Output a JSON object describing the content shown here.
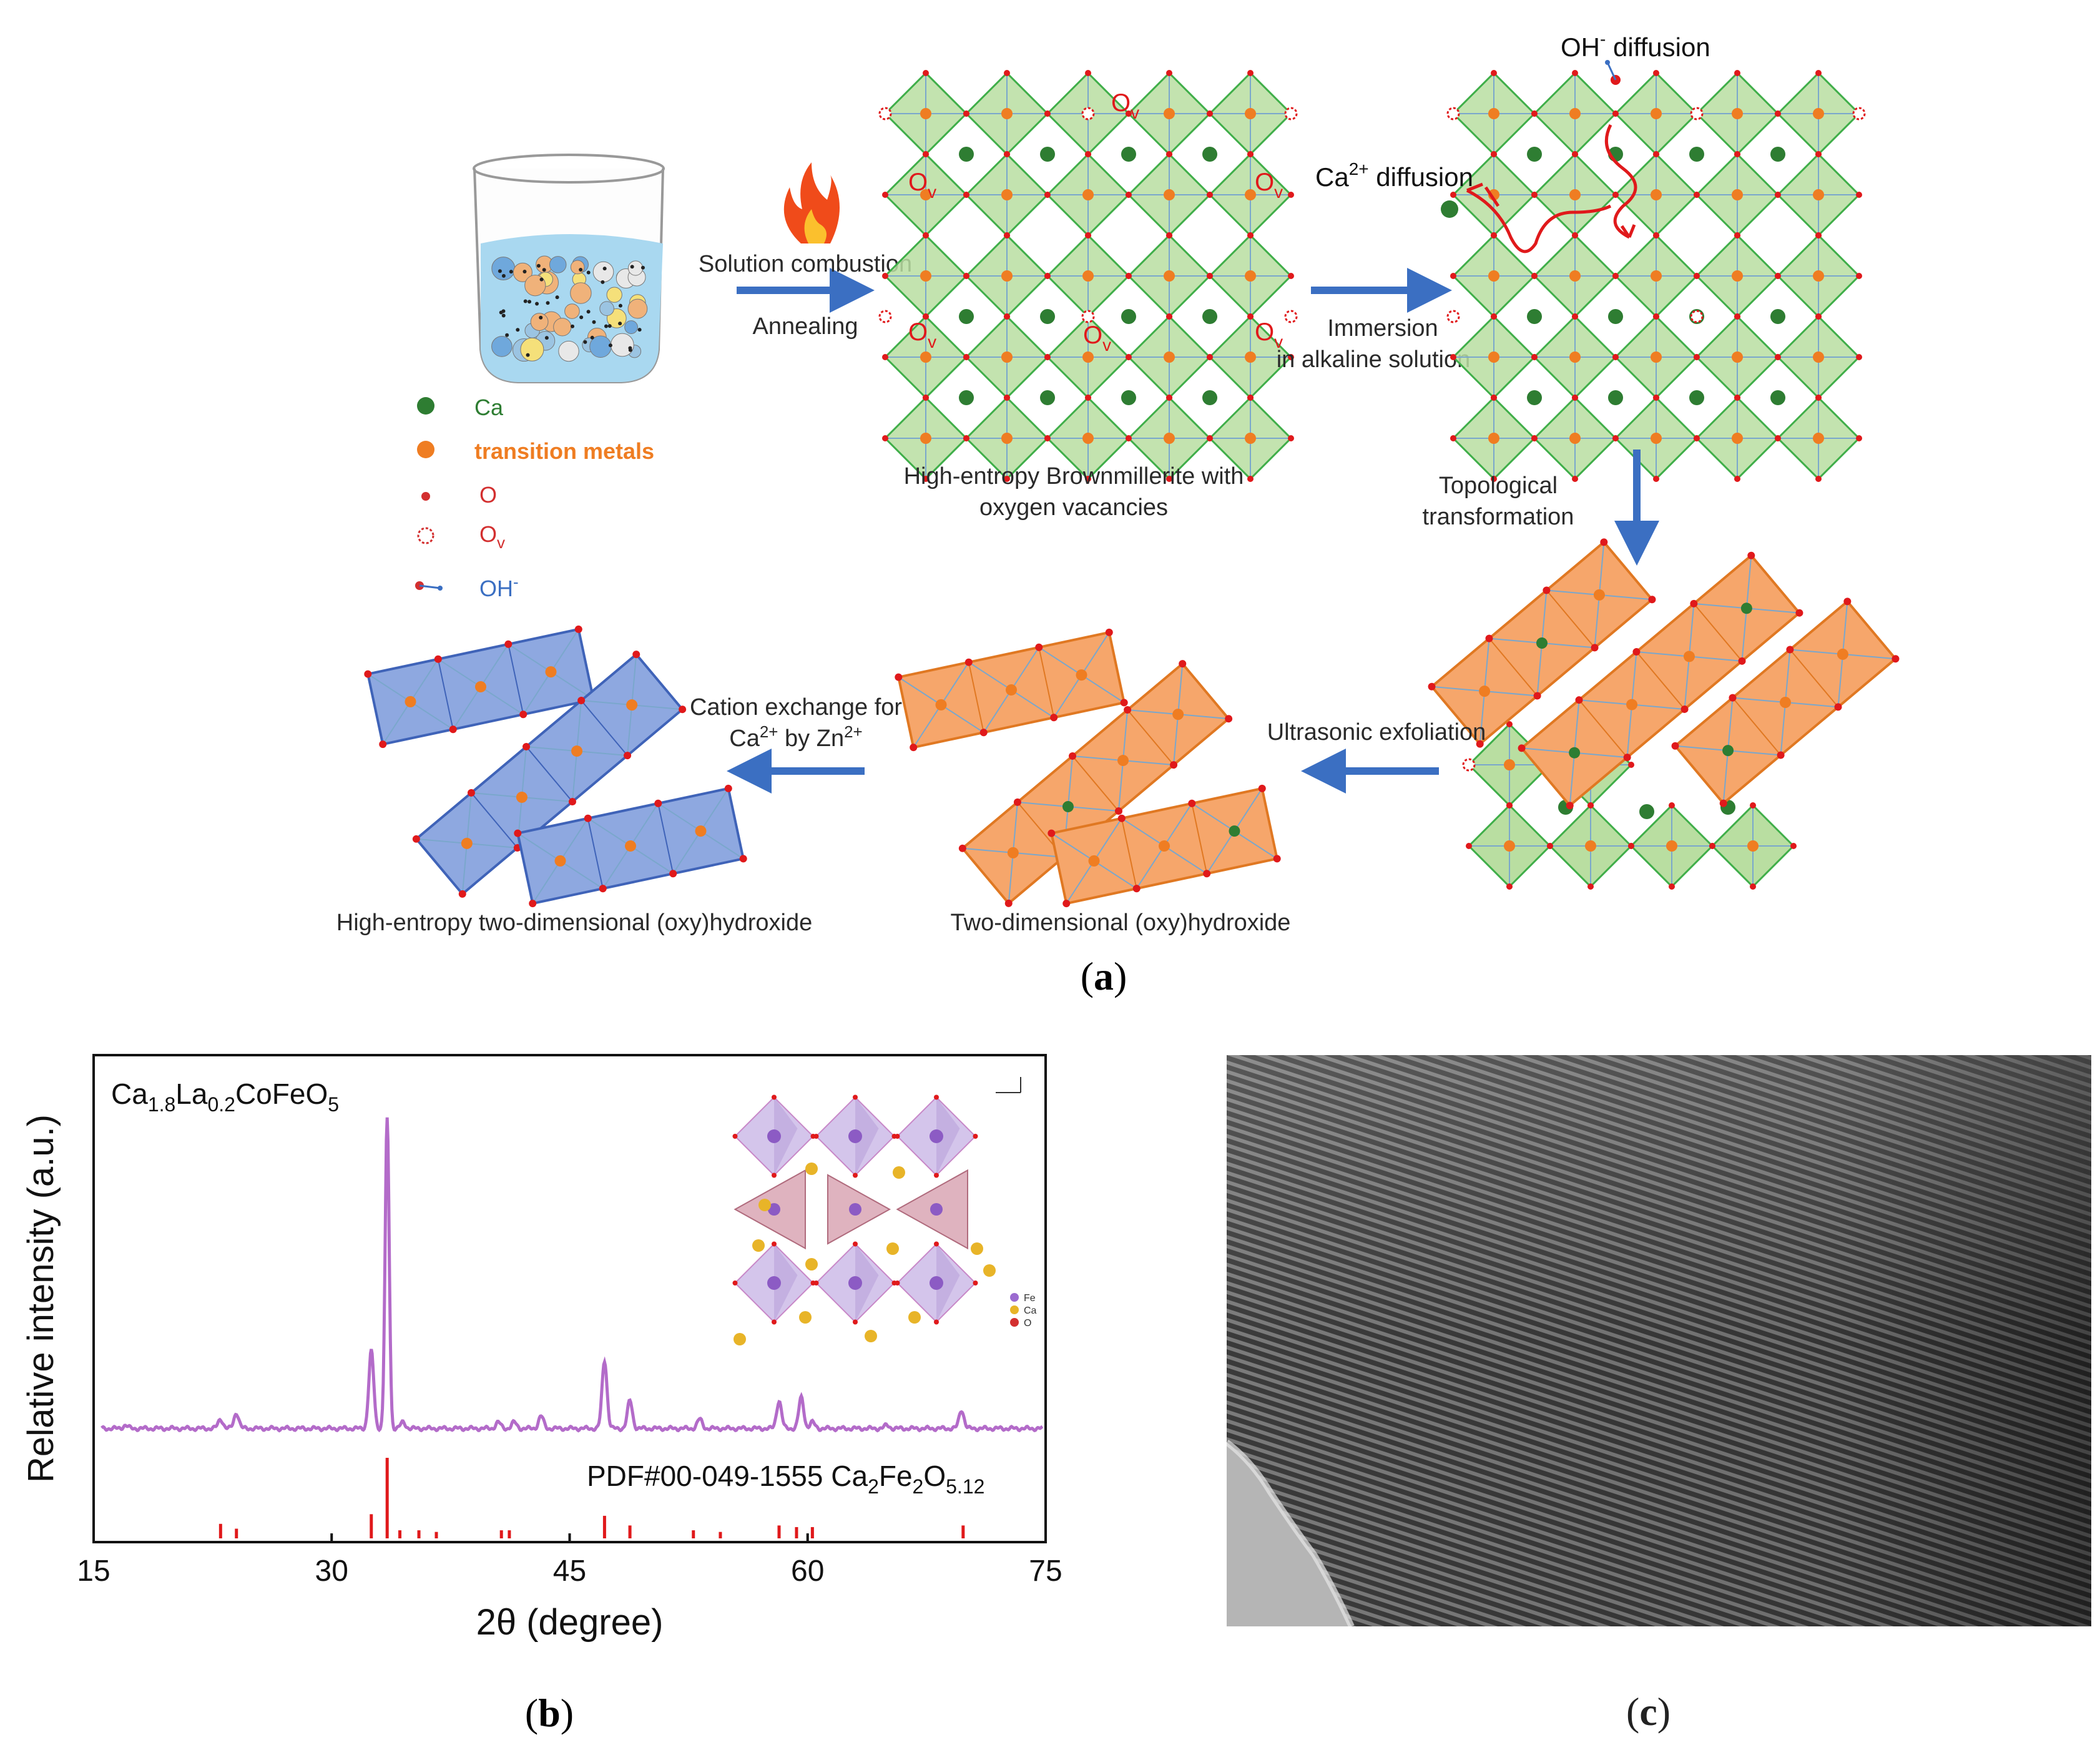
{
  "panel_a": {
    "label": "a",
    "legend": [
      {
        "text": "Ca",
        "color": "#2e7d32"
      },
      {
        "text": "transition metals",
        "color": "#ef7d22"
      },
      {
        "text": "O",
        "color": "#d32f2f"
      },
      {
        "text": "O",
        "sub": "v",
        "color": "#d32f2f"
      },
      {
        "text": "OH",
        "sup": "-",
        "color": "#3b6fc2"
      }
    ],
    "step1_top": "Solution combustion",
    "step1_bottom": "Annealing",
    "brownmillerite_caption_1": "High-entropy Brownmillerite with",
    "brownmillerite_caption_2": "oxygen vacancies",
    "ov_text": "O",
    "ov_sub": "v",
    "ca_diffusion": "Ca",
    "ca_diffusion_sup": "2+",
    "ca_diffusion_tail": " diffusion",
    "oh_diffusion": "OH",
    "oh_diffusion_sup": "-",
    "oh_diffusion_tail": " diffusion",
    "immersion_1": "Immersion",
    "immersion_2": "in alkaline solution",
    "topological_1": "Topological",
    "topological_2": "transformation",
    "ultrasonic": "Ultrasonic exfoliation",
    "cation_1": "Cation exchange for",
    "cation_2a": "Ca",
    "cation_2b": "2+",
    "cation_2c": " by Zn",
    "cation_2d": "2+",
    "twod_caption": "Two-dimensional (oxy)hydroxide",
    "he_twod_caption": "High-entropy two-dimensional (oxy)hydroxide"
  },
  "panel_b": {
    "label": "b",
    "compound": {
      "a": "Ca",
      "b": "1.8",
      "c": "La",
      "d": "0.2",
      "e": "CoFeO",
      "f": "5"
    },
    "reference": {
      "a": "PDF#00-049-1555 Ca",
      "b": "2",
      "c": "Fe",
      "d": "2",
      "e": "O",
      "f": "5.12"
    },
    "inset_legend": [
      "Fe",
      "Ca",
      "O"
    ],
    "inset_colors": [
      "#9b6bd0",
      "#e8b428",
      "#d32f2f"
    ]
  },
  "panel_c": {
    "label": "c"
  },
  "chart_data": {
    "type": "line",
    "xlabel": "2θ (degree)",
    "ylabel": "Relative intensity (a.u.)",
    "xlim": [
      15,
      75
    ],
    "xticks": [
      15,
      30,
      45,
      60,
      75
    ],
    "grid": false,
    "series": [
      {
        "name": "Ca1.8La0.2CoFeO5",
        "color": "#b36bc9",
        "peaks": [
          [
            17.0,
            0.01
          ],
          [
            23.0,
            0.03
          ],
          [
            24.0,
            0.05
          ],
          [
            32.5,
            0.25
          ],
          [
            33.5,
            1.0
          ],
          [
            34.5,
            0.02
          ],
          [
            40.5,
            0.02
          ],
          [
            41.5,
            0.02
          ],
          [
            43.2,
            0.04
          ],
          [
            47.2,
            0.22
          ],
          [
            48.8,
            0.09
          ],
          [
            53.2,
            0.03
          ],
          [
            58.2,
            0.09
          ],
          [
            59.6,
            0.1
          ],
          [
            60.3,
            0.02
          ],
          [
            65.0,
            0.01
          ],
          [
            69.7,
            0.06
          ]
        ]
      },
      {
        "name": "PDF#00-049-1555 Ca2Fe2O5.12",
        "color": "#e0191b",
        "type": "stick",
        "sticks": [
          [
            23.0,
            0.18
          ],
          [
            24.0,
            0.12
          ],
          [
            32.5,
            0.3
          ],
          [
            33.5,
            1.0
          ],
          [
            34.3,
            0.1
          ],
          [
            35.5,
            0.1
          ],
          [
            36.6,
            0.08
          ],
          [
            40.7,
            0.1
          ],
          [
            41.2,
            0.1
          ],
          [
            47.2,
            0.28
          ],
          [
            48.8,
            0.16
          ],
          [
            52.8,
            0.1
          ],
          [
            54.5,
            0.08
          ],
          [
            58.2,
            0.16
          ],
          [
            59.3,
            0.14
          ],
          [
            60.3,
            0.14
          ],
          [
            69.8,
            0.16
          ]
        ]
      }
    ]
  }
}
